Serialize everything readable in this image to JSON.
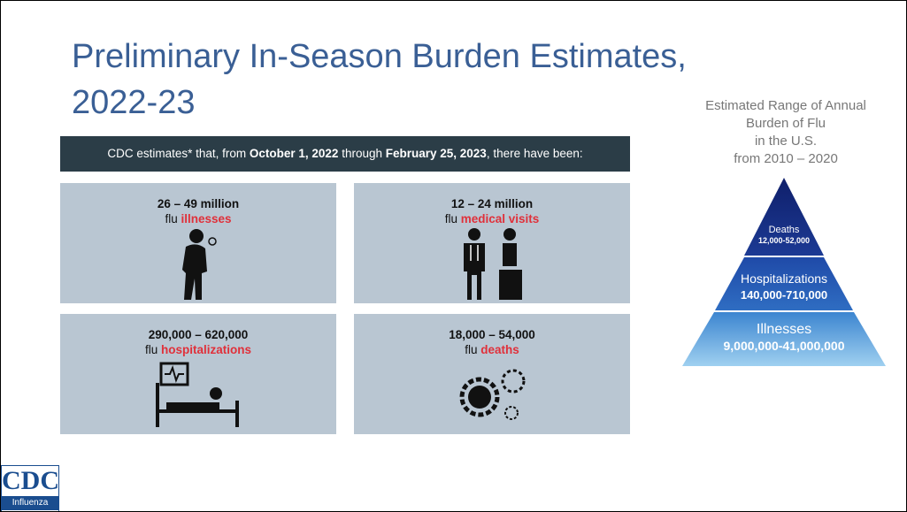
{
  "title": [
    "Preliminary In-Season Burden Estimates,",
    "2022-23"
  ],
  "banner": [
    {
      "text": "CDC estimates* that, from ",
      "bold": false
    },
    {
      "text": "October 1, 2022",
      "bold": true
    },
    {
      "text": " through ",
      "bold": false
    },
    {
      "text": "February 25, 2023",
      "bold": true
    },
    {
      "text": ", there have been:",
      "bold": false
    }
  ],
  "cards": [
    {
      "value": "26 – 49 million",
      "prefix": "flu",
      "highlight": "illnesses"
    },
    {
      "value": "12 – 24 million",
      "prefix": "flu",
      "highlight": "medical visits"
    },
    {
      "value": "290,000 – 620,000",
      "prefix": "flu",
      "highlight": "hospitalizations"
    },
    {
      "value": "18,000 – 54,000",
      "prefix": "flu",
      "highlight": "deaths"
    }
  ],
  "pyramid": {
    "caption": [
      "Estimated Range of Annual",
      "Burden of Flu",
      "in the U.S.",
      "from 2010 –  2020"
    ],
    "levels": [
      {
        "name": "Deaths",
        "range": "12,000-52,000"
      },
      {
        "name": "Hospitalizations",
        "range": "140,000-710,000"
      },
      {
        "name": "Illnesses",
        "range": "9,000,000-41,000,000"
      }
    ]
  },
  "logo": {
    "name": "CDC",
    "sub": "Influenza"
  }
}
